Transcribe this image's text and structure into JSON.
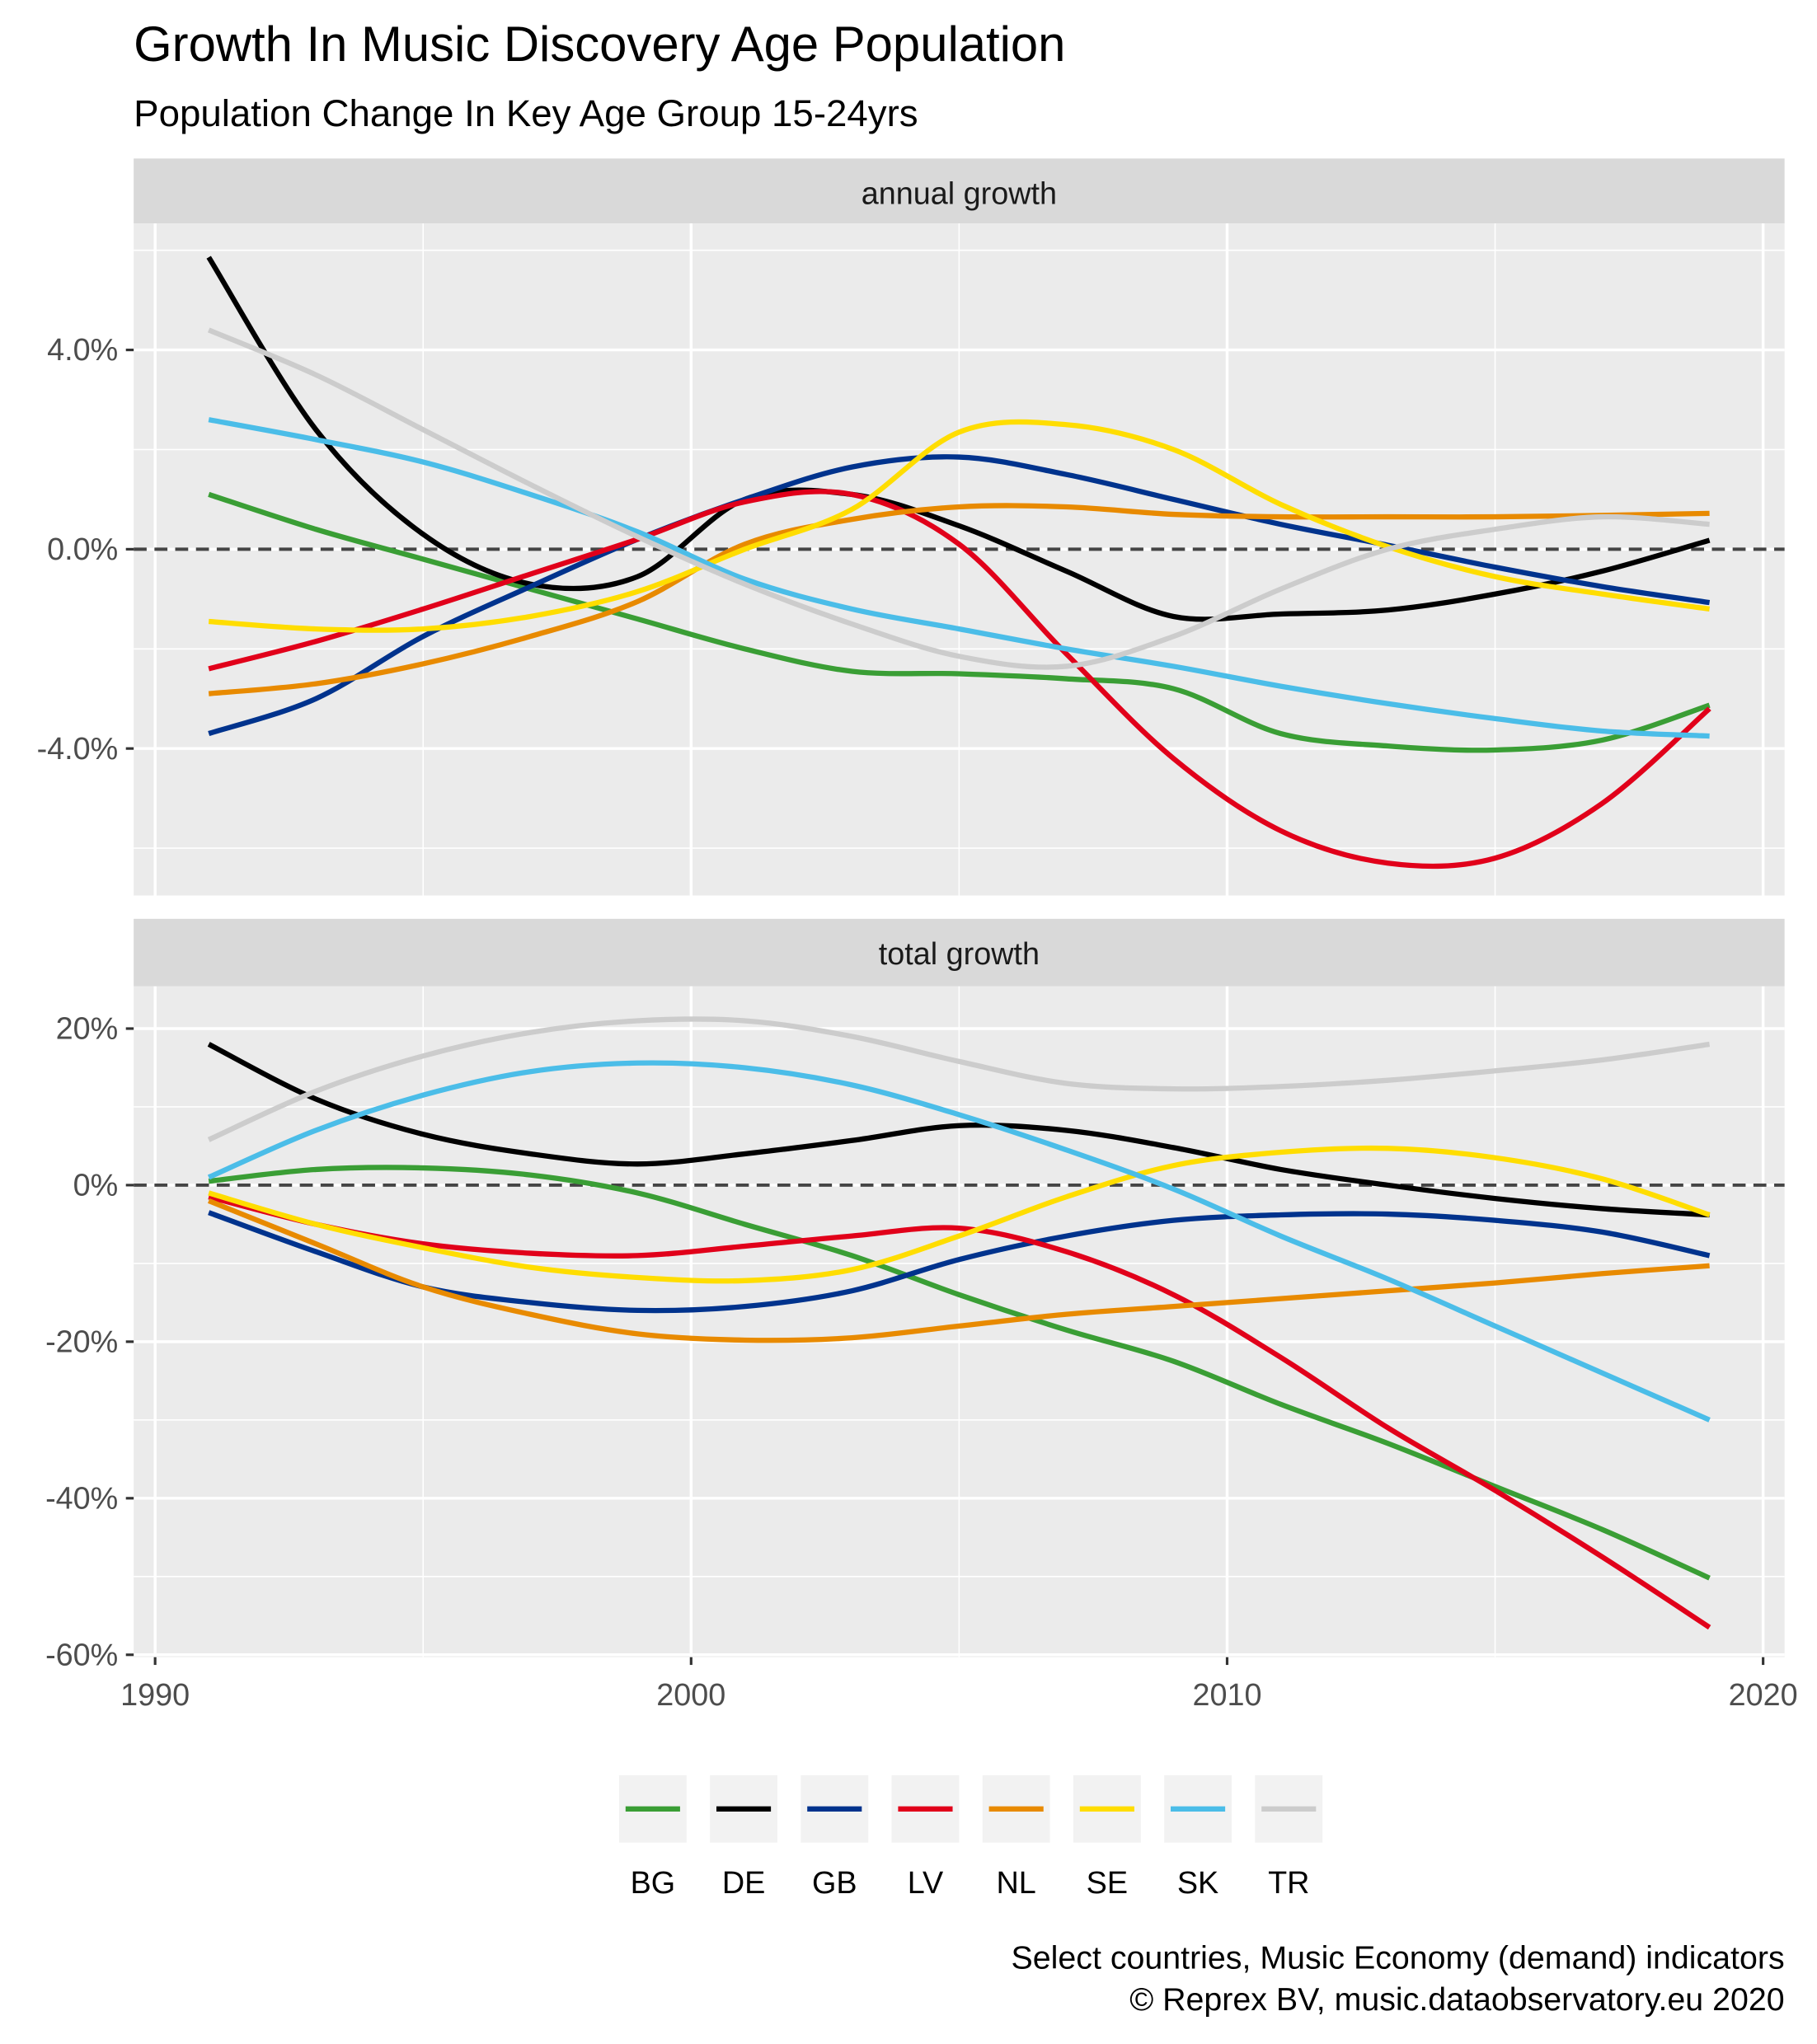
{
  "title": "Growth In Music Discovery Age Population",
  "subtitle": "Population Change In Key Age Group 15-24yrs",
  "caption": [
    "Select countries, Music Economy (demand) indicators",
    "©  Reprex BV, music.dataobservatory.eu 2020"
  ],
  "colors": {
    "BG": "#3a9e35",
    "DE": "#000000",
    "GB": "#00338d",
    "LV": "#e1001a",
    "NL": "#e88a00",
    "SE": "#ffdd00",
    "SK": "#4bbde8",
    "TR": "#cccccc"
  },
  "legend": {
    "position": "bottom",
    "entries": [
      "BG",
      "DE",
      "GB",
      "LV",
      "NL",
      "SE",
      "SK",
      "TR"
    ]
  },
  "chart_data": [
    {
      "type": "line",
      "facet": "annual growth",
      "x": [
        1991,
        1993,
        1995,
        1997,
        1999,
        2001,
        2003,
        2005,
        2007,
        2009,
        2011,
        2013,
        2015,
        2017,
        2019
      ],
      "xlim": [
        1989.6,
        2020.4
      ],
      "xticks": [
        1990,
        2000,
        2010,
        2020
      ],
      "ylim": [
        -6.95,
        6.54
      ],
      "yticks": [
        4,
        0,
        -4
      ],
      "ytick_labels": [
        "4.0%",
        "0.0%",
        "-4.0%"
      ],
      "reference_line": 0,
      "grid": true,
      "series": [
        {
          "name": "BG",
          "values": [
            1.1,
            0.4,
            -0.2,
            -0.8,
            -1.4,
            -2.0,
            -2.45,
            -2.5,
            -2.6,
            -2.8,
            -3.7,
            -3.95,
            -4.03,
            -3.83,
            -3.13
          ]
        },
        {
          "name": "DE",
          "values": [
            5.86,
            2.4,
            0.3,
            -0.7,
            -0.55,
            1.0,
            1.1,
            0.47,
            -0.44,
            -1.35,
            -1.3,
            -1.22,
            -0.9,
            -0.44,
            0.18
          ]
        },
        {
          "name": "GB",
          "values": [
            -3.7,
            -3.0,
            -1.75,
            -0.75,
            0.2,
            1.0,
            1.65,
            1.85,
            1.5,
            1.0,
            0.5,
            0.08,
            -0.36,
            -0.75,
            -1.07
          ]
        },
        {
          "name": "LV",
          "values": [
            -2.4,
            -1.85,
            -1.2,
            -0.5,
            0.2,
            0.95,
            1.1,
            0.1,
            -2.1,
            -4.2,
            -5.65,
            -6.3,
            -6.2,
            -5.1,
            -3.2
          ]
        },
        {
          "name": "NL",
          "values": [
            -2.9,
            -2.7,
            -2.3,
            -1.75,
            -1.05,
            0.1,
            0.6,
            0.85,
            0.85,
            0.7,
            0.65,
            0.65,
            0.65,
            0.68,
            0.72
          ]
        },
        {
          "name": "SE",
          "values": [
            -1.45,
            -1.6,
            -1.6,
            -1.35,
            -0.85,
            0.0,
            0.8,
            2.35,
            2.5,
            2.0,
            0.9,
            0.05,
            -0.55,
            -0.9,
            -1.2
          ]
        },
        {
          "name": "SK",
          "values": [
            2.6,
            2.2,
            1.75,
            1.1,
            0.35,
            -0.6,
            -1.2,
            -1.6,
            -2.0,
            -2.35,
            -2.75,
            -3.1,
            -3.4,
            -3.65,
            -3.75
          ]
        },
        {
          "name": "TR",
          "values": [
            4.4,
            3.5,
            2.4,
            1.3,
            0.25,
            -0.7,
            -1.5,
            -2.15,
            -2.35,
            -1.75,
            -0.8,
            0.0,
            0.4,
            0.65,
            0.5
          ]
        }
      ]
    },
    {
      "type": "line",
      "facet": "total growth",
      "x": [
        1991,
        1993,
        1995,
        1997,
        1999,
        2001,
        2003,
        2005,
        2007,
        2009,
        2011,
        2013,
        2015,
        2017,
        2019
      ],
      "xlim": [
        1989.6,
        2020.4
      ],
      "xticks": [
        1990,
        2000,
        2010,
        2020
      ],
      "xtick_labels": [
        "1990",
        "2000",
        "2010",
        "2020"
      ],
      "ylim": [
        -60.3,
        25.4
      ],
      "yticks": [
        20,
        0,
        -20,
        -40,
        -60
      ],
      "ytick_labels": [
        "20%",
        "0%",
        "-20%",
        "-40%",
        "-60%"
      ],
      "reference_line": 0,
      "grid": true,
      "series": [
        {
          "name": "BG",
          "values": [
            0.5,
            2.0,
            2.2,
            1.3,
            -1.0,
            -5.0,
            -9.0,
            -14.0,
            -18.5,
            -22.5,
            -28.0,
            -33.0,
            -38.5,
            -44.0,
            -50.2
          ]
        },
        {
          "name": "DE",
          "values": [
            18.0,
            11.0,
            6.5,
            4.0,
            2.7,
            4.0,
            5.7,
            7.6,
            7.0,
            4.8,
            2.0,
            0.0,
            -1.7,
            -3.0,
            -3.8
          ]
        },
        {
          "name": "GB",
          "values": [
            -3.5,
            -8.5,
            -13.0,
            -15.0,
            -16.0,
            -15.5,
            -13.5,
            -9.5,
            -6.5,
            -4.5,
            -3.8,
            -3.7,
            -4.5,
            -6.0,
            -9.0
          ]
        },
        {
          "name": "LV",
          "values": [
            -1.5,
            -5.0,
            -7.5,
            -8.7,
            -9.0,
            -7.8,
            -6.5,
            -5.5,
            -8.5,
            -14.0,
            -22.0,
            -31.0,
            -39.0,
            -47.5,
            -56.5
          ]
        },
        {
          "name": "NL",
          "values": [
            -2.0,
            -7.5,
            -13.0,
            -16.5,
            -19.0,
            -19.8,
            -19.5,
            -18.0,
            -16.5,
            -15.5,
            -14.5,
            -13.5,
            -12.5,
            -11.3,
            -10.3
          ]
        },
        {
          "name": "SE",
          "values": [
            -1.0,
            -5.0,
            -8.0,
            -10.5,
            -11.8,
            -12.2,
            -10.8,
            -6.5,
            -1.5,
            2.5,
            4.2,
            4.7,
            3.5,
            0.8,
            -3.8
          ]
        },
        {
          "name": "SK",
          "values": [
            1.0,
            7.0,
            11.5,
            14.5,
            15.6,
            15.0,
            12.8,
            9.0,
            4.5,
            -0.5,
            -6.5,
            -12.0,
            -18.0,
            -24.0,
            -30.0
          ]
        },
        {
          "name": "TR",
          "values": [
            5.8,
            12.0,
            16.5,
            19.5,
            21.0,
            21.0,
            19.0,
            15.8,
            13.0,
            12.3,
            12.6,
            13.4,
            14.6,
            16.0,
            18.0
          ]
        }
      ]
    }
  ]
}
